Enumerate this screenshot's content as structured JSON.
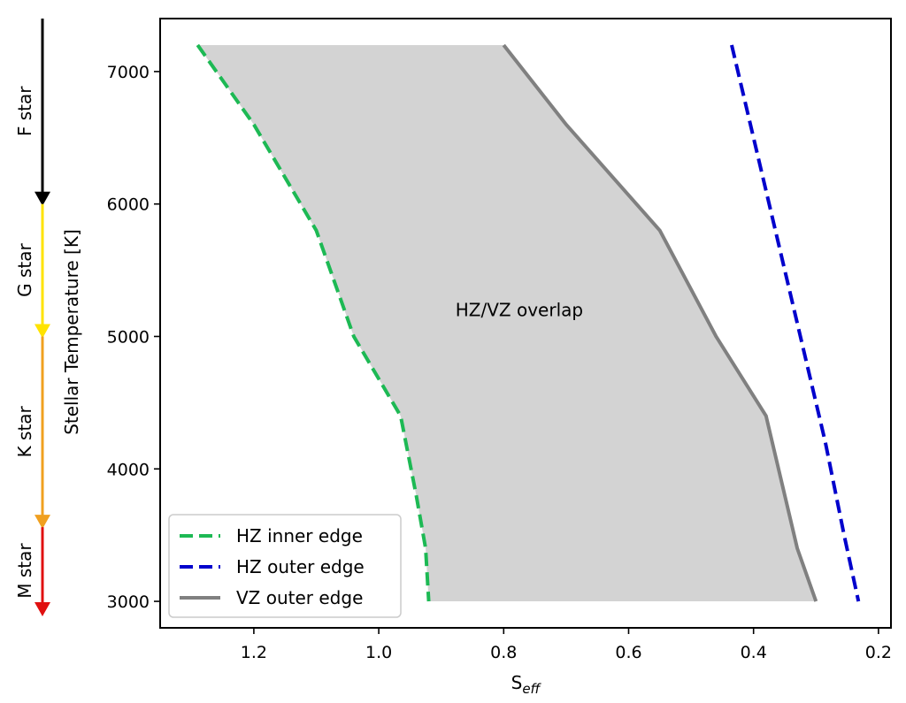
{
  "chart_data": {
    "type": "line",
    "xlabel_main": "S",
    "xlabel_sub": "eff",
    "ylabel": "Stellar Temperature [K]",
    "xlim": [
      1.35,
      0.18
    ],
    "ylim": [
      2800,
      7400
    ],
    "x_reversed": true,
    "xticks": [
      1.2,
      1.0,
      0.8,
      0.6,
      0.4,
      0.2
    ],
    "xtick_labels": [
      "1.2",
      "1.0",
      "0.8",
      "0.6",
      "0.4",
      "0.2"
    ],
    "yticks": [
      3000,
      4000,
      5000,
      6000,
      7000
    ],
    "ytick_labels": [
      "3000",
      "4000",
      "5000",
      "6000",
      "7000"
    ],
    "grid": false,
    "legend_position": "lower-left",
    "series": [
      {
        "name": "HZ inner edge",
        "color": "#1db954",
        "style": "dashed",
        "x": [
          1.29,
          1.2,
          1.1,
          1.04,
          0.965,
          0.94,
          0.925,
          0.92
        ],
        "y": [
          7200,
          6600,
          5800,
          5000,
          4400,
          3800,
          3400,
          3000
        ]
      },
      {
        "name": "HZ outer edge",
        "color": "#0000cc",
        "style": "dashed",
        "x": [
          0.435,
          0.4,
          0.36,
          0.32,
          0.285,
          0.255,
          0.232
        ],
        "y": [
          7200,
          6500,
          5700,
          4900,
          4200,
          3500,
          3000
        ]
      },
      {
        "name": "VZ outer edge",
        "color": "#808080",
        "style": "solid",
        "x": [
          0.8,
          0.7,
          0.55,
          0.46,
          0.38,
          0.33,
          0.3
        ],
        "y": [
          7200,
          6600,
          5800,
          5000,
          4400,
          3400,
          3000
        ]
      }
    ],
    "region": {
      "label": "HZ/VZ overlap",
      "label_x": 0.775,
      "label_y": 5200,
      "color": "#d3d3d3",
      "between": [
        "HZ inner edge",
        "VZ outer edge"
      ]
    },
    "spectral_arrow": {
      "segments": [
        {
          "label": "F star",
          "from": 7400,
          "to": 6000,
          "color": "#000000"
        },
        {
          "label": "G star",
          "from": 6000,
          "to": 5000,
          "color": "#ffe300"
        },
        {
          "label": "K star",
          "from": 5000,
          "to": 3560,
          "color": "#f0a020"
        },
        {
          "label": "M star",
          "from": 3560,
          "to": 2900,
          "color": "#e01010"
        }
      ]
    }
  }
}
